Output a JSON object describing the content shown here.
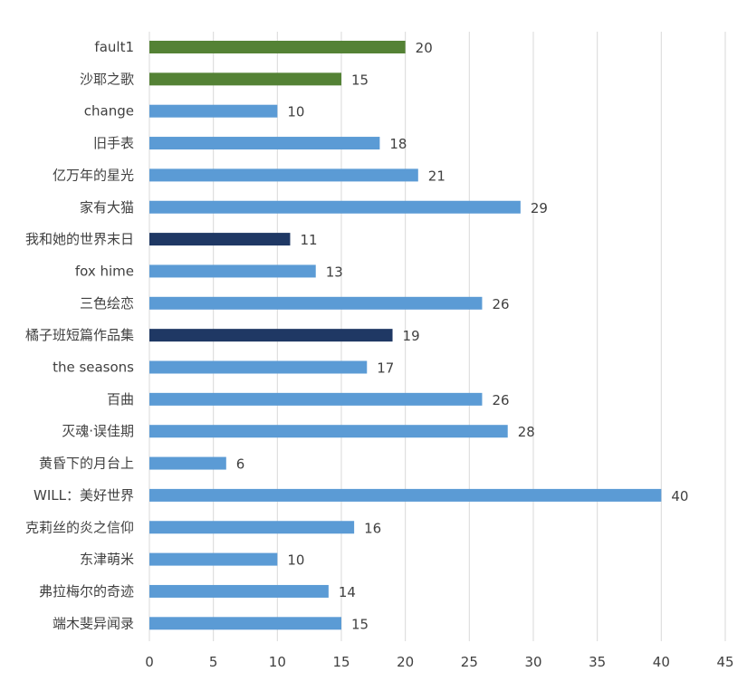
{
  "chart_data": {
    "type": "bar",
    "orientation": "horizontal",
    "categories": [
      "fault1",
      "沙耶之歌",
      "change",
      "旧手表",
      "亿万年的星光",
      "家有大猫",
      "我和她的世界末日",
      "fox hime",
      "三色绘恋",
      "橘子班短篇作品集",
      "the seasons",
      "百曲",
      "灭魂·误佳期",
      "黄昏下的月台上",
      "WILL：美好世界",
      "克莉丝的炎之信仰",
      "东津萌米",
      "弗拉梅尔的奇迹",
      "端木斐异闻录"
    ],
    "values": [
      20,
      15,
      10,
      18,
      21,
      29,
      11,
      13,
      26,
      19,
      17,
      26,
      28,
      6,
      40,
      16,
      10,
      14,
      15
    ],
    "colors": [
      "#548235",
      "#548235",
      "#5b9bd5",
      "#5b9bd5",
      "#5b9bd5",
      "#5b9bd5",
      "#1f3864",
      "#5b9bd5",
      "#5b9bd5",
      "#1f3864",
      "#5b9bd5",
      "#5b9bd5",
      "#5b9bd5",
      "#5b9bd5",
      "#5b9bd5",
      "#5b9bd5",
      "#5b9bd5",
      "#5b9bd5",
      "#5b9bd5"
    ],
    "xlim": [
      0,
      45
    ],
    "xticks": [
      0,
      5,
      10,
      15,
      20,
      25,
      30,
      35,
      40,
      45
    ],
    "grid": "vertical",
    "data_labels": true,
    "title": "",
    "xlabel": "",
    "ylabel": ""
  }
}
